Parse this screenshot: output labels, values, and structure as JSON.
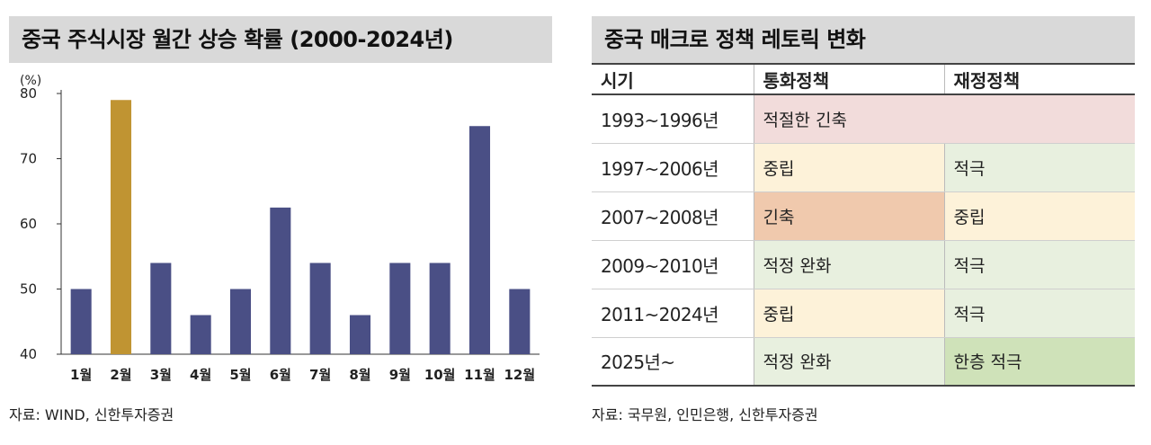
{
  "left_panel": {
    "title": "중국 주식시장 월간 상승 확률 (2000-2024년)",
    "source": "자료: WIND, 신한투자증권"
  },
  "chart_data": {
    "type": "bar",
    "title": "중국 주식시장 월간 상승 확률 (2000-2024년)",
    "ylabel": "(%)",
    "xlabel": "",
    "ylim": [
      40,
      80
    ],
    "yticks": [
      40,
      50,
      60,
      70,
      80
    ],
    "categories": [
      "1월",
      "2월",
      "3월",
      "4월",
      "5월",
      "6월",
      "7월",
      "8월",
      "9월",
      "10월",
      "11월",
      "12월"
    ],
    "values": [
      50,
      79,
      54,
      46,
      50,
      62.5,
      54,
      46,
      54,
      54,
      75,
      50
    ],
    "colors": {
      "default": "#4a4f85",
      "highlight": "#c09432"
    },
    "highlight_index": 1,
    "grid": false,
    "legend": "none"
  },
  "right_panel": {
    "title": "중국 매크로 정책 레토릭 변화",
    "headers": [
      "시기",
      "통화정책",
      "재정정책"
    ],
    "rows": [
      {
        "period": "1993~1996년",
        "monetary": "적절한 긴축",
        "fiscal": "",
        "merged": true,
        "monetary_color": "#f2dcdb",
        "fiscal_color": "#f2dcdb"
      },
      {
        "period": "1997~2006년",
        "monetary": "중립",
        "fiscal": "적극",
        "merged": false,
        "monetary_color": "#fdf2d9",
        "fiscal_color": "#e8f0df"
      },
      {
        "period": "2007~2008년",
        "monetary": "긴축",
        "fiscal": "중립",
        "merged": false,
        "monetary_color": "#f0c9ad",
        "fiscal_color": "#fdf2d9"
      },
      {
        "period": "2009~2010년",
        "monetary": "적정 완화",
        "fiscal": "적극",
        "merged": false,
        "monetary_color": "#e8f0df",
        "fiscal_color": "#e8f0df"
      },
      {
        "period": "2011~2024년",
        "monetary": "중립",
        "fiscal": "적극",
        "merged": false,
        "monetary_color": "#fdf2d9",
        "fiscal_color": "#e8f0df"
      },
      {
        "period": "2025년~",
        "monetary": "적정 완화",
        "fiscal": "한층 적극",
        "merged": false,
        "monetary_color": "#e8f0df",
        "fiscal_color": "#cfe2b9"
      }
    ],
    "source": "자료: 국무원, 인민은행, 신한투자증권"
  }
}
